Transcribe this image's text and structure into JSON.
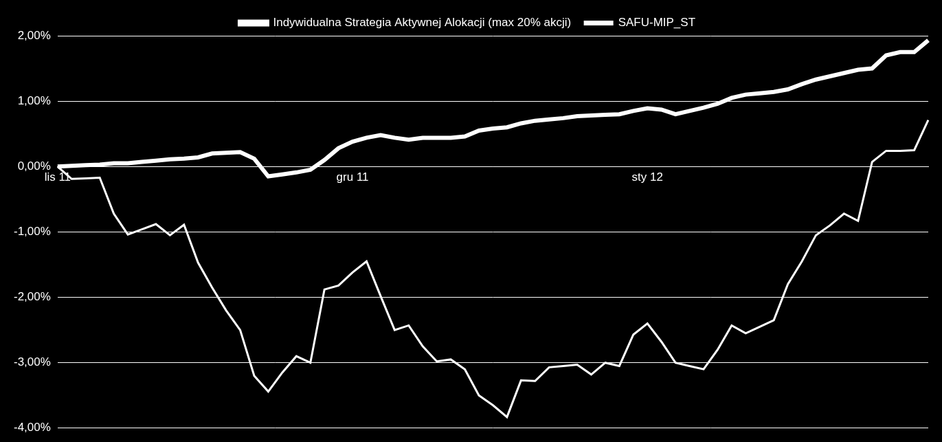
{
  "chart_data": {
    "type": "line",
    "categories": [
      "lis 11",
      null,
      null,
      null,
      null,
      null,
      null,
      null,
      null,
      null,
      null,
      null,
      null,
      null,
      null,
      null,
      null,
      null,
      null,
      null,
      null,
      "gru 11",
      null,
      null,
      null,
      null,
      null,
      null,
      null,
      null,
      null,
      null,
      null,
      null,
      null,
      null,
      null,
      null,
      null,
      null,
      null,
      null,
      "sty 12",
      null,
      null,
      null,
      null,
      null,
      null,
      null,
      null,
      null,
      null,
      null,
      null,
      null,
      null,
      null,
      null,
      null,
      null,
      null,
      null
    ],
    "series": [
      {
        "name": "Indywidualna Strategia Aktywnej Alokacji (max 20% akcji)",
        "color": "#ffffff",
        "line_style": "double",
        "values": [
          0.0,
          0.01,
          0.02,
          0.03,
          0.05,
          0.05,
          0.07,
          0.09,
          0.11,
          0.12,
          0.14,
          0.2,
          0.21,
          0.22,
          0.12,
          -0.15,
          -0.12,
          -0.09,
          -0.05,
          0.1,
          0.28,
          0.38,
          0.44,
          0.48,
          0.44,
          0.41,
          0.44,
          0.44,
          0.44,
          0.46,
          0.55,
          0.58,
          0.6,
          0.66,
          0.7,
          0.72,
          0.74,
          0.77,
          0.78,
          0.79,
          0.8,
          0.85,
          0.89,
          0.87,
          0.8,
          0.85,
          0.9,
          0.96,
          1.05,
          1.1,
          1.12,
          1.14,
          1.18,
          1.26,
          1.33,
          1.38,
          1.43,
          1.48,
          1.5,
          1.7,
          1.75,
          1.75,
          1.93
        ]
      },
      {
        "name": "SAFU-MIP_ST",
        "color": "#ffffff",
        "line_style": "solid",
        "values": [
          0.0,
          -0.19,
          -0.18,
          -0.17,
          -0.72,
          -1.04,
          -0.96,
          -0.88,
          -1.05,
          -0.89,
          -1.47,
          -1.85,
          -2.2,
          -2.5,
          -3.2,
          -3.44,
          -3.15,
          -2.9,
          -3.0,
          -1.88,
          -1.82,
          -1.62,
          -1.45,
          -1.98,
          -2.5,
          -2.43,
          -2.75,
          -2.98,
          -2.95,
          -3.1,
          -3.5,
          -3.65,
          -3.83,
          -3.27,
          -3.28,
          -3.07,
          -3.05,
          -3.03,
          -3.18,
          -3.0,
          -3.05,
          -2.57,
          -2.4,
          -2.68,
          -3.0,
          -3.05,
          -3.1,
          -2.8,
          -2.43,
          -2.55,
          -2.45,
          -2.35,
          -1.8,
          -1.45,
          -1.05,
          -0.9,
          -0.72,
          -0.83,
          0.07,
          0.24,
          0.24,
          0.25,
          0.71
        ]
      }
    ],
    "ylim": [
      -4,
      2
    ],
    "yticks": [
      {
        "value": -4,
        "label": "-4,00%"
      },
      {
        "value": -3,
        "label": "-3,00%"
      },
      {
        "value": -2,
        "label": "-2,00%"
      },
      {
        "value": -1,
        "label": "-1,00%"
      },
      {
        "value": 0,
        "label": "0,00%"
      },
      {
        "value": 1,
        "label": "1,00%"
      },
      {
        "value": 2,
        "label": "2,00%"
      }
    ],
    "grid": true,
    "legend": "top"
  }
}
